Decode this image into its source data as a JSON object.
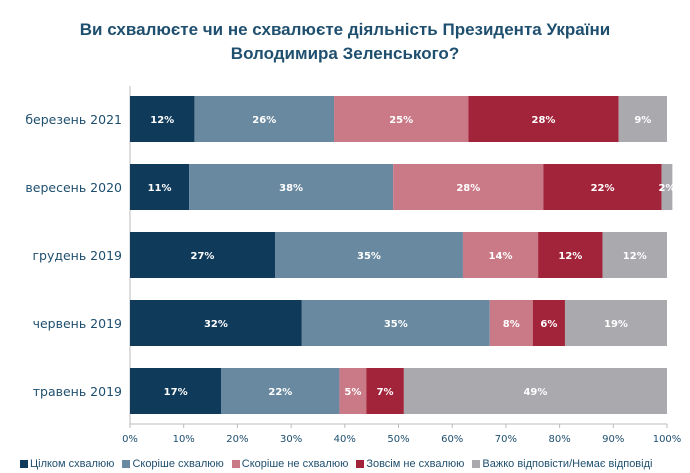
{
  "chart_data": {
    "type": "bar",
    "orientation": "horizontal",
    "stacked": true,
    "title": "Ви схвалюєте чи не схвалюєте діяльність Президента України Володимира Зеленського?",
    "title_lines": [
      "Ви схвалюєте чи не схвалюєте діяльність Президента України",
      "Володимира Зеленського?"
    ],
    "categories": [
      "березень 2021",
      "вересень 2020",
      "грудень 2019",
      "червень 2019",
      "травень 2019"
    ],
    "series": [
      {
        "name": "Цілком схвалюю",
        "color": "#0f3a5a",
        "values": [
          12,
          11,
          27,
          32,
          17
        ]
      },
      {
        "name": "Скоріше схвалюю",
        "color": "#6989a0",
        "values": [
          26,
          38,
          35,
          35,
          22
        ]
      },
      {
        "name": "Скоріше не схвалюю",
        "color": "#c97a86",
        "values": [
          25,
          28,
          14,
          8,
          5
        ]
      },
      {
        "name": "Зовсім не схвалюю",
        "color": "#a2243a",
        "values": [
          28,
          22,
          12,
          6,
          7
        ]
      },
      {
        "name": "Важко відповісти/Немає відповіді",
        "color": "#a9a9ae",
        "values": [
          9,
          2,
          12,
          19,
          49
        ]
      }
    ],
    "value_suffix": "%",
    "xlim": [
      0,
      100
    ],
    "xticks": [
      "0%",
      "10%",
      "20%",
      "30%",
      "40%",
      "50%",
      "60%",
      "70%",
      "80%",
      "90%",
      "100%"
    ],
    "grid": false,
    "legend": "bottom"
  }
}
